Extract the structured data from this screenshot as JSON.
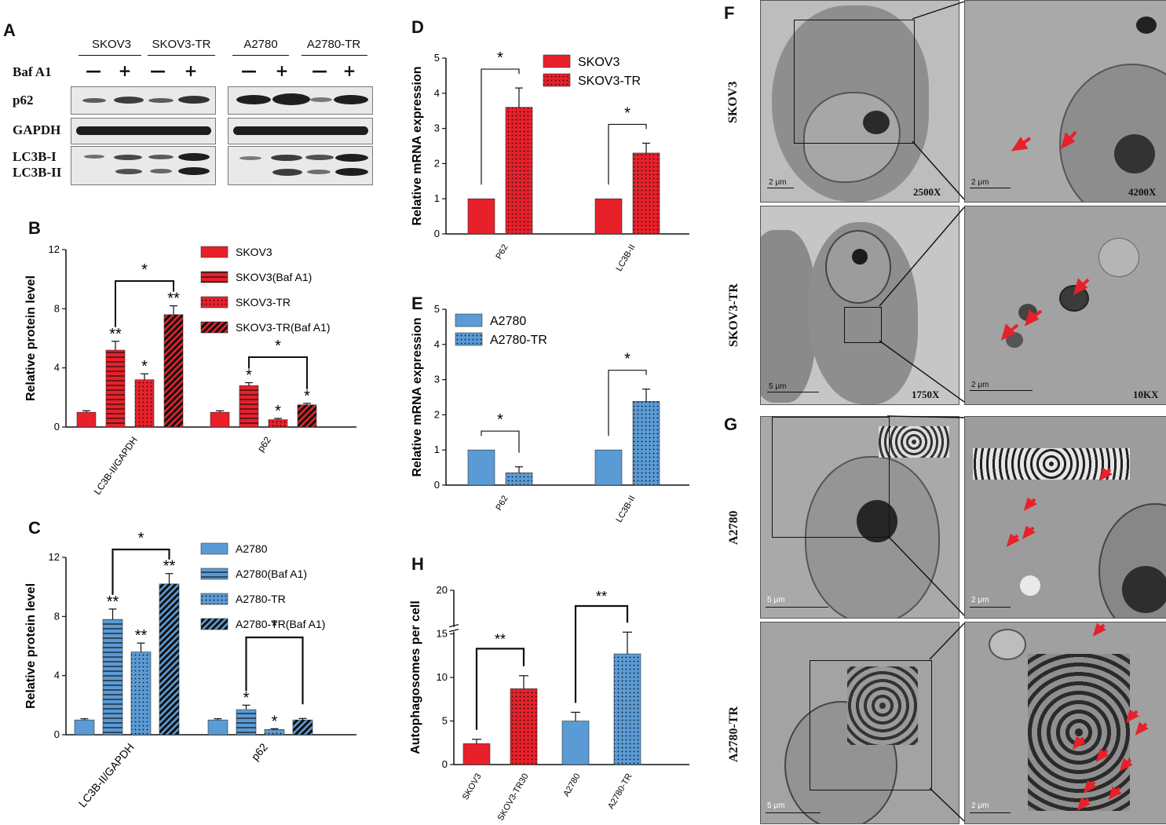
{
  "panel_letters": {
    "a": "A",
    "b": "B",
    "c": "C",
    "d": "D",
    "e": "E",
    "f": "F",
    "g": "G",
    "h": "H"
  },
  "blot": {
    "groups": [
      "SKOV3",
      "SKOV3-TR",
      "A2780",
      "A2780-TR"
    ],
    "treatment_label": "Baf A1",
    "treatment_signs": [
      "—",
      "+",
      "—",
      "+",
      "—",
      "+",
      "—",
      "+"
    ],
    "rows": [
      "p62",
      "GAPDH",
      "LC3B-I",
      "LC3B-II"
    ]
  },
  "colors": {
    "red": "#e8202a",
    "blue": "#5b9bd5",
    "black": "#111111"
  },
  "chart_data": [
    {
      "id": "B",
      "type": "bar",
      "ylabel": "Relative protein level",
      "ylim": [
        0,
        12
      ],
      "yticks": [
        0,
        4,
        8,
        12
      ],
      "categories": [
        "LC3B-II/GAPDH",
        "p62"
      ],
      "series": [
        {
          "name": "SKOV3",
          "pattern": "solid",
          "values": [
            1.0,
            1.0
          ],
          "errors": [
            0.1,
            0.1
          ],
          "sig": [
            "",
            ""
          ]
        },
        {
          "name": "SKOV3(Baf A1)",
          "pattern": "hlines",
          "values": [
            5.2,
            2.8
          ],
          "errors": [
            0.6,
            0.2
          ],
          "sig": [
            "**",
            "*"
          ]
        },
        {
          "name": "SKOV3-TR",
          "pattern": "dots",
          "values": [
            3.2,
            0.5
          ],
          "errors": [
            0.4,
            0.08
          ],
          "sig": [
            "*",
            "*"
          ]
        },
        {
          "name": "SKOV3-TR(Baf A1)",
          "pattern": "diag",
          "values": [
            7.6,
            1.5
          ],
          "errors": [
            0.6,
            0.1
          ],
          "sig": [
            "**",
            "*"
          ]
        }
      ],
      "brackets": [
        {
          "cat": 0,
          "from": 1,
          "to": 3,
          "label": "*"
        },
        {
          "cat": 1,
          "from": 1,
          "to": 3,
          "label": "*"
        }
      ],
      "color": "#e8202a"
    },
    {
      "id": "C",
      "type": "bar",
      "ylabel": "Relative protein level",
      "ylim": [
        0,
        12
      ],
      "yticks": [
        0,
        4,
        8,
        12
      ],
      "categories": [
        "LC3B-II/GAPDH",
        "p62"
      ],
      "series": [
        {
          "name": "A2780",
          "pattern": "solid",
          "values": [
            1.0,
            1.0
          ],
          "errors": [
            0.08,
            0.08
          ],
          "sig": [
            "",
            ""
          ]
        },
        {
          "name": "A2780(Baf A1)",
          "pattern": "hlines",
          "values": [
            7.8,
            1.7
          ],
          "errors": [
            0.7,
            0.3
          ],
          "sig": [
            "**",
            "*"
          ]
        },
        {
          "name": "A2780-TR",
          "pattern": "dots",
          "values": [
            5.6,
            0.35
          ],
          "errors": [
            0.6,
            0.06
          ],
          "sig": [
            "**",
            "*"
          ]
        },
        {
          "name": "A2780-TR(Baf A1)",
          "pattern": "diag",
          "values": [
            10.2,
            1.0
          ],
          "errors": [
            0.7,
            0.1
          ],
          "sig": [
            "**",
            ""
          ]
        }
      ],
      "brackets": [
        {
          "cat": 0,
          "from": 1,
          "to": 3,
          "label": "*"
        },
        {
          "cat": 1,
          "from": 1,
          "to": 3,
          "label": "*"
        }
      ],
      "color": "#5b9bd5"
    },
    {
      "id": "D",
      "type": "bar",
      "ylabel": "Relative mRNA expression",
      "ylim": [
        0,
        5
      ],
      "yticks": [
        0,
        1,
        2,
        3,
        4,
        5
      ],
      "categories": [
        "P62",
        "LC3B-II"
      ],
      "series": [
        {
          "name": "SKOV3",
          "pattern": "solid",
          "values": [
            1.0,
            1.0
          ],
          "errors": [
            0,
            0
          ]
        },
        {
          "name": "SKOV3-TR",
          "pattern": "dots",
          "values": [
            3.6,
            2.3
          ],
          "errors": [
            0.55,
            0.28
          ]
        }
      ],
      "brackets": [
        {
          "cat": 0,
          "from": 0,
          "to": 1,
          "label": "*"
        },
        {
          "cat": 1,
          "from": 0,
          "to": 1,
          "label": "*"
        }
      ],
      "color": "#e8202a"
    },
    {
      "id": "E",
      "type": "bar",
      "ylabel": "Relative mRNA expression",
      "ylim": [
        0,
        5
      ],
      "yticks": [
        0,
        1,
        2,
        3,
        4,
        5
      ],
      "categories": [
        "P62",
        "LC3B-II"
      ],
      "series": [
        {
          "name": "A2780",
          "pattern": "solid",
          "values": [
            1.0,
            1.0
          ],
          "errors": [
            0,
            0
          ]
        },
        {
          "name": "A2780-TR",
          "pattern": "dots",
          "values": [
            0.35,
            2.38
          ],
          "errors": [
            0.17,
            0.35
          ]
        }
      ],
      "brackets": [
        {
          "cat": 0,
          "from": 0,
          "to": 1,
          "label": "*"
        },
        {
          "cat": 1,
          "from": 0,
          "to": 1,
          "label": "*"
        }
      ],
      "color": "#5b9bd5"
    },
    {
      "id": "H",
      "type": "bar",
      "ylabel": "Autophagosomes per cell",
      "ylim": [
        0,
        20
      ],
      "yticks": [
        0,
        5,
        10,
        15,
        20
      ],
      "categories": [
        "SKOV3",
        "SKOV3-TR30",
        "A2780",
        "A2780-TR"
      ],
      "values": [
        2.4,
        8.7,
        5.0,
        12.7
      ],
      "errors": [
        0.5,
        1.5,
        1.0,
        2.5
      ],
      "bar_colors": [
        "#e8202a",
        "#e8202a",
        "#5b9bd5",
        "#5b9bd5"
      ],
      "patterns": [
        "solid",
        "dots",
        "solid",
        "dots"
      ],
      "brackets": [
        {
          "from": 0,
          "to": 1,
          "label": "**"
        },
        {
          "from": 2,
          "to": 3,
          "label": "**"
        }
      ]
    }
  ],
  "em": {
    "rows": [
      "SKOV3",
      "SKOV3-TR",
      "A2780",
      "A2780-TR"
    ],
    "scales": [
      "2 μm",
      "2 μm",
      "5 μm",
      "2 μm",
      "5 μm",
      "2 μm",
      "5 μm",
      "2 μm"
    ],
    "mags": [
      "2500X",
      "4200X",
      "1750X",
      "10KX"
    ]
  }
}
